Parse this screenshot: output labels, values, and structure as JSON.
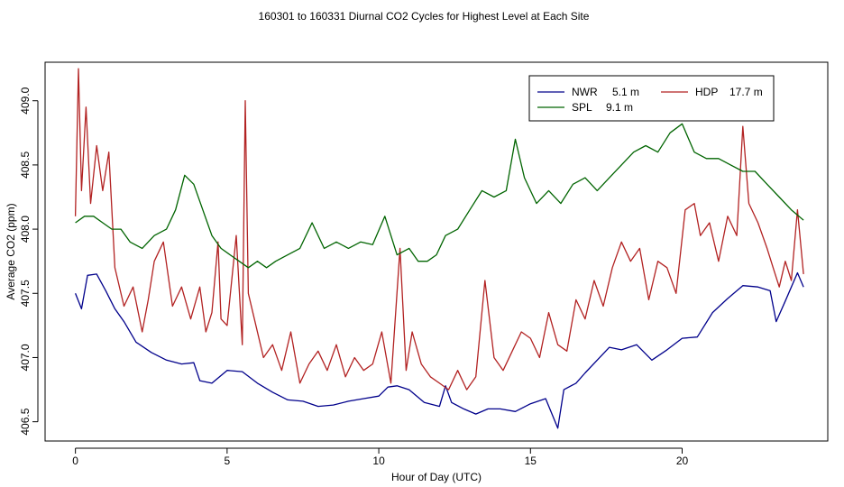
{
  "chart_data": {
    "type": "line",
    "title": "160301  to  160331 Diurnal CO2 Cycles for Highest Level at Each Site",
    "xlabel": "Hour of Day (UTC)",
    "ylabel": "Average CO2 (ppm)",
    "xlim": [
      -1,
      24.8
    ],
    "ylim": [
      406.35,
      409.3
    ],
    "xticks": [
      0,
      5,
      10,
      15,
      20
    ],
    "yticks": [
      406.5,
      407.0,
      407.5,
      408.0,
      408.5,
      409.0
    ],
    "xtick_labels": [
      "0",
      "5",
      "10",
      "15",
      "20"
    ],
    "ytick_labels": [
      "406.5",
      "407.0",
      "407.5",
      "408.0",
      "408.5",
      "409.0"
    ],
    "grid": false,
    "legend": {
      "position": "top-right",
      "entries": [
        {
          "name": "NWR",
          "height": "5.1 m",
          "color": "#00008b"
        },
        {
          "name": "HDP",
          "height": "17.7 m",
          "color": "#b22222"
        },
        {
          "name": "SPL",
          "height": "9.1 m",
          "color": "#006400"
        }
      ]
    },
    "series": [
      {
        "name": "NWR",
        "color": "#00008b",
        "x": [
          0,
          0.2,
          0.4,
          0.7,
          1.0,
          1.3,
          1.6,
          2.0,
          2.5,
          3.0,
          3.5,
          3.9,
          4.1,
          4.5,
          5.0,
          5.5,
          6.0,
          6.5,
          7.0,
          7.5,
          8.0,
          8.5,
          9.0,
          9.5,
          10.0,
          10.3,
          10.6,
          11.0,
          11.5,
          12.0,
          12.2,
          12.4,
          12.8,
          13.2,
          13.6,
          14.0,
          14.5,
          15.0,
          15.5,
          15.9,
          16.1,
          16.5,
          16.8,
          17.2,
          17.6,
          18.0,
          18.5,
          19.0,
          19.5,
          20.0,
          20.5,
          21.0,
          21.5,
          22.0,
          22.5,
          22.9,
          23.1,
          23.4,
          23.8,
          24.0
        ],
        "values": [
          407.5,
          407.38,
          407.64,
          407.65,
          407.52,
          407.38,
          407.28,
          407.12,
          407.04,
          406.98,
          406.95,
          406.96,
          406.82,
          406.8,
          406.9,
          406.89,
          406.8,
          406.73,
          406.67,
          406.66,
          406.62,
          406.63,
          406.66,
          406.68,
          406.7,
          406.77,
          406.78,
          406.75,
          406.65,
          406.62,
          406.78,
          406.65,
          406.6,
          406.56,
          406.6,
          406.6,
          406.58,
          406.64,
          406.68,
          406.45,
          406.75,
          406.8,
          406.88,
          406.98,
          407.08,
          407.06,
          407.1,
          406.98,
          407.06,
          407.15,
          407.16,
          407.35,
          407.46,
          407.56,
          407.55,
          407.52,
          407.28,
          407.44,
          407.66,
          407.55
        ]
      },
      {
        "name": "HDP",
        "color": "#b22222",
        "x": [
          0,
          0.1,
          0.2,
          0.35,
          0.5,
          0.7,
          0.9,
          1.1,
          1.3,
          1.6,
          1.9,
          2.2,
          2.4,
          2.6,
          2.9,
          3.2,
          3.5,
          3.8,
          4.1,
          4.3,
          4.5,
          4.7,
          4.8,
          5.0,
          5.3,
          5.5,
          5.6,
          5.7,
          5.9,
          6.2,
          6.5,
          6.8,
          7.1,
          7.4,
          7.7,
          8.0,
          8.3,
          8.6,
          8.9,
          9.2,
          9.5,
          9.8,
          10.1,
          10.4,
          10.7,
          10.9,
          11.1,
          11.4,
          11.7,
          12.0,
          12.3,
          12.6,
          12.9,
          13.2,
          13.5,
          13.8,
          14.1,
          14.4,
          14.7,
          15.0,
          15.3,
          15.6,
          15.9,
          16.2,
          16.5,
          16.8,
          17.1,
          17.4,
          17.7,
          18.0,
          18.3,
          18.6,
          18.9,
          19.2,
          19.5,
          19.8,
          20.1,
          20.4,
          20.6,
          20.9,
          21.2,
          21.5,
          21.8,
          22.0,
          22.2,
          22.5,
          22.8,
          23.0,
          23.2,
          23.4,
          23.6,
          23.8,
          24.0
        ],
        "values": [
          408.1,
          409.25,
          408.3,
          408.95,
          408.2,
          408.65,
          408.3,
          408.6,
          407.7,
          407.4,
          407.55,
          407.2,
          407.45,
          407.75,
          407.9,
          407.4,
          407.55,
          407.3,
          407.55,
          407.2,
          407.35,
          407.9,
          407.3,
          407.25,
          407.95,
          407.1,
          409.0,
          407.5,
          407.3,
          407.0,
          407.1,
          406.9,
          407.2,
          406.8,
          406.95,
          407.05,
          406.9,
          407.1,
          406.85,
          407.0,
          406.9,
          406.95,
          407.2,
          406.8,
          407.85,
          406.9,
          407.2,
          406.95,
          406.85,
          406.8,
          406.75,
          406.9,
          406.75,
          406.85,
          407.6,
          407.0,
          406.9,
          407.05,
          407.2,
          407.15,
          407.0,
          407.35,
          407.1,
          407.05,
          407.45,
          407.3,
          407.6,
          407.4,
          407.7,
          407.9,
          407.75,
          407.85,
          407.45,
          407.75,
          407.7,
          407.5,
          408.15,
          408.2,
          407.95,
          408.05,
          407.75,
          408.1,
          407.95,
          408.8,
          408.2,
          408.05,
          407.85,
          407.7,
          407.55,
          407.75,
          407.6,
          408.15,
          407.65
        ]
      },
      {
        "name": "SPL",
        "color": "#006400",
        "x": [
          0,
          0.3,
          0.6,
          0.9,
          1.2,
          1.5,
          1.8,
          2.2,
          2.6,
          3.0,
          3.3,
          3.6,
          3.9,
          4.2,
          4.5,
          4.8,
          5.1,
          5.4,
          5.7,
          6.0,
          6.3,
          6.6,
          7.0,
          7.4,
          7.8,
          8.2,
          8.6,
          9.0,
          9.4,
          9.8,
          10.2,
          10.6,
          11.0,
          11.3,
          11.6,
          11.9,
          12.2,
          12.6,
          13.0,
          13.4,
          13.8,
          14.2,
          14.5,
          14.8,
          15.2,
          15.6,
          16.0,
          16.4,
          16.8,
          17.2,
          17.6,
          18.0,
          18.4,
          18.8,
          19.2,
          19.6,
          20.0,
          20.4,
          20.8,
          21.2,
          21.6,
          22.0,
          22.4,
          22.8,
          23.2,
          23.6,
          24.0
        ],
        "values": [
          408.05,
          408.1,
          408.1,
          408.05,
          408.0,
          408.0,
          407.9,
          407.85,
          407.95,
          408.0,
          408.15,
          408.42,
          408.35,
          408.15,
          407.95,
          407.85,
          407.8,
          407.75,
          407.7,
          407.75,
          407.7,
          407.75,
          407.8,
          407.85,
          408.05,
          407.85,
          407.9,
          407.85,
          407.9,
          407.88,
          408.1,
          407.8,
          407.85,
          407.75,
          407.75,
          407.8,
          407.95,
          408.0,
          408.15,
          408.3,
          408.25,
          408.3,
          408.7,
          408.4,
          408.2,
          408.3,
          408.2,
          408.35,
          408.4,
          408.3,
          408.4,
          408.5,
          408.6,
          408.65,
          408.6,
          408.75,
          408.82,
          408.6,
          408.55,
          408.55,
          408.5,
          408.45,
          408.45,
          408.35,
          408.25,
          408.15,
          408.07
        ]
      }
    ]
  }
}
